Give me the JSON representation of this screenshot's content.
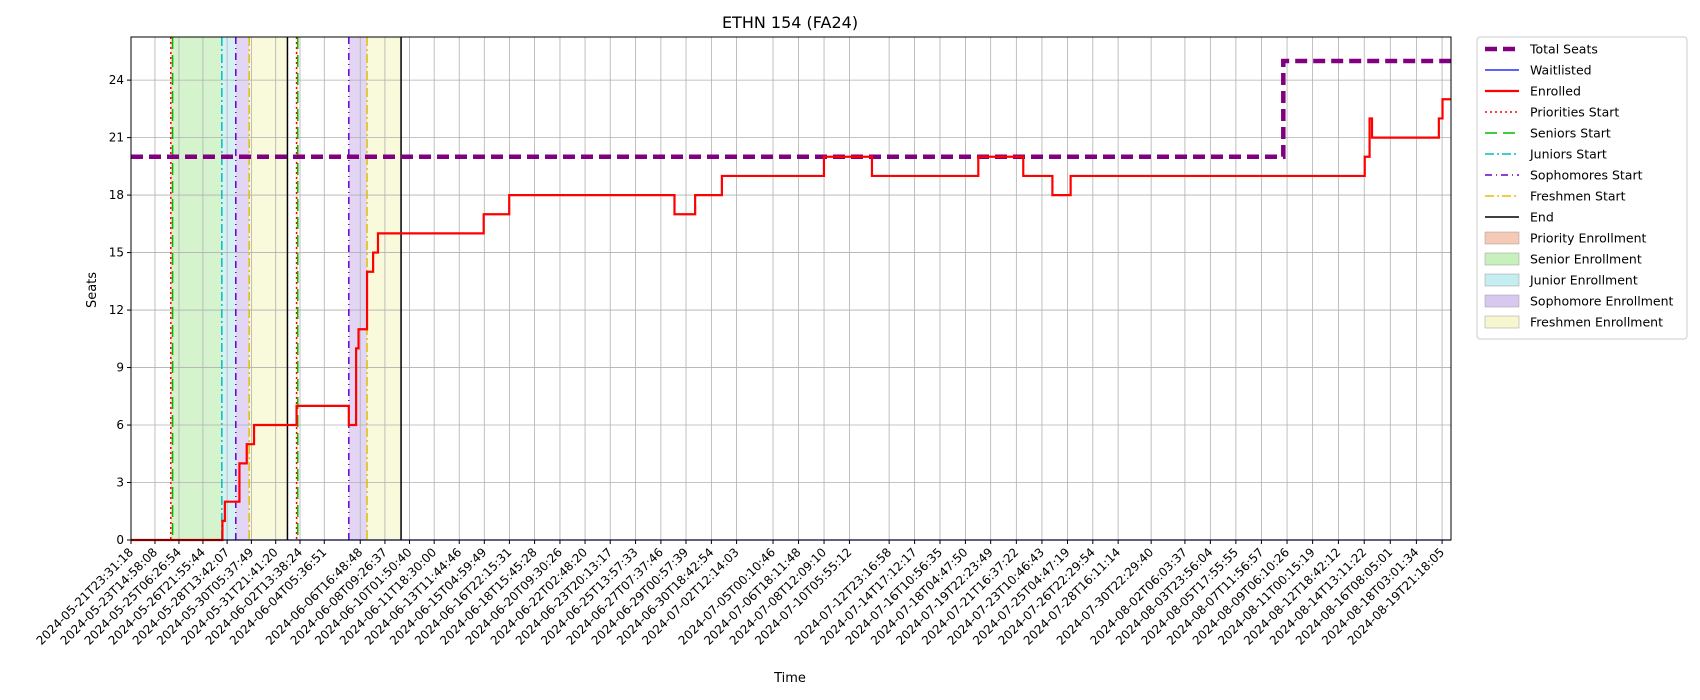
{
  "chart_data": {
    "type": "line",
    "title": "ETHN 154 (FA24)",
    "xlabel": "Time",
    "ylabel": "Seats",
    "ylim": [
      0,
      26.25
    ],
    "y_ticks": [
      0,
      3,
      6,
      9,
      12,
      15,
      18,
      21,
      24
    ],
    "x_range": [
      "2024-05-21T23:31:18",
      "2024-08-20T12:00:00"
    ],
    "x_ticks": [
      "2024-05-21T23:31:18",
      "2024-05-23T14:58:08",
      "2024-05-25T06:26:54",
      "2024-05-26T21:55:44",
      "2024-05-28T13:42:07",
      "2024-05-30T05:37:49",
      "2024-05-31T21:41:20",
      "2024-06-02T13:38:24",
      "2024-06-04T05:36:51",
      "2024-06-06T16:48:48",
      "2024-06-08T09:26:37",
      "2024-06-10T01:50:40",
      "2024-06-11T18:30:00",
      "2024-06-13T11:44:46",
      "2024-06-15T04:59:49",
      "2024-06-16T22:15:31",
      "2024-06-18T15:45:28",
      "2024-06-20T09:30:26",
      "2024-06-22T02:48:20",
      "2024-06-23T20:13:17",
      "2024-06-25T13:57:33",
      "2024-06-27T07:37:46",
      "2024-06-29T00:57:39",
      "2024-06-30T18:42:54",
      "2024-07-02T12:14:03",
      "2024-07-05T00:10:46",
      "2024-07-06T18:11:48",
      "2024-07-08T12:09:10",
      "2024-07-10T05:55:12",
      "2024-07-12T23:16:58",
      "2024-07-14T17:12:17",
      "2024-07-16T10:56:35",
      "2024-07-18T04:47:50",
      "2024-07-19T22:23:49",
      "2024-07-21T16:37:22",
      "2024-07-23T10:46:43",
      "2024-07-25T04:47:19",
      "2024-07-26T22:29:54",
      "2024-07-28T16:11:14",
      "2024-07-30T22:29:40",
      "2024-08-02T06:03:37",
      "2024-08-03T23:56:04",
      "2024-08-05T17:55:55",
      "2024-08-07T11:56:57",
      "2024-08-09T06:10:26",
      "2024-08-11T00:15:19",
      "2024-08-12T18:42:12",
      "2024-08-14T13:11:22",
      "2024-08-16T08:05:01",
      "2024-08-18T03:01:34",
      "2024-08-19T21:18:05"
    ],
    "grid": true,
    "legend_position": "outside-right",
    "series": [
      {
        "name": "Total Seats",
        "style": "dashed",
        "color": "#800080",
        "points": [
          [
            "2024-05-21T23:31:18",
            20
          ],
          [
            "2024-08-09T00:00:00",
            20
          ],
          [
            "2024-08-09T00:00:00",
            25
          ],
          [
            "2024-08-20T12:00:00",
            25
          ]
        ]
      },
      {
        "name": "Waitlisted",
        "style": "solid",
        "color": "#0000ff",
        "points": [
          [
            "2024-05-21T23:31:18",
            0
          ],
          [
            "2024-08-20T12:00:00",
            0
          ]
        ]
      },
      {
        "name": "Enrolled",
        "style": "solid",
        "color": "#ff0000",
        "points": [
          [
            "2024-05-21T23:31:18",
            0
          ],
          [
            "2024-05-28T06:00:00",
            0
          ],
          [
            "2024-05-28T06:00:00",
            1
          ],
          [
            "2024-05-28T10:00:00",
            1
          ],
          [
            "2024-05-28T10:00:00",
            2
          ],
          [
            "2024-05-29T10:00:00",
            2
          ],
          [
            "2024-05-29T10:00:00",
            4
          ],
          [
            "2024-05-29T22:00:00",
            4
          ],
          [
            "2024-05-29T22:00:00",
            5
          ],
          [
            "2024-05-30T10:00:00",
            5
          ],
          [
            "2024-05-30T10:00:00",
            6
          ],
          [
            "2024-06-02T08:00:00",
            6
          ],
          [
            "2024-06-02T08:00:00",
            7
          ],
          [
            "2024-06-05T22:00:00",
            7
          ],
          [
            "2024-06-05T22:00:00",
            6
          ],
          [
            "2024-06-06T10:00:00",
            6
          ],
          [
            "2024-06-06T10:00:00",
            10
          ],
          [
            "2024-06-06T14:00:00",
            10
          ],
          [
            "2024-06-06T14:00:00",
            11
          ],
          [
            "2024-06-07T04:00:00",
            11
          ],
          [
            "2024-06-07T04:00:00",
            14
          ],
          [
            "2024-06-07T14:00:00",
            14
          ],
          [
            "2024-06-07T14:00:00",
            15
          ],
          [
            "2024-06-07T22:00:00",
            15
          ],
          [
            "2024-06-07T22:00:00",
            16
          ],
          [
            "2024-06-15T04:00:00",
            16
          ],
          [
            "2024-06-15T04:00:00",
            17
          ],
          [
            "2024-06-16T22:00:00",
            17
          ],
          [
            "2024-06-16T22:00:00",
            18
          ],
          [
            "2024-06-28T06:00:00",
            18
          ],
          [
            "2024-06-28T06:00:00",
            17
          ],
          [
            "2024-06-29T16:00:00",
            17
          ],
          [
            "2024-06-29T16:00:00",
            18
          ],
          [
            "2024-07-01T12:00:00",
            18
          ],
          [
            "2024-07-01T12:00:00",
            19
          ],
          [
            "2024-07-08T12:00:00",
            19
          ],
          [
            "2024-07-08T12:00:00",
            20
          ],
          [
            "2024-07-11T19:00:00",
            20
          ],
          [
            "2024-07-11T19:00:00",
            19
          ],
          [
            "2024-07-19T02:00:00",
            19
          ],
          [
            "2024-07-19T02:00:00",
            20
          ],
          [
            "2024-07-22T04:00:00",
            20
          ],
          [
            "2024-07-22T04:00:00",
            19
          ],
          [
            "2024-07-24T04:00:00",
            19
          ],
          [
            "2024-07-24T04:00:00",
            18
          ],
          [
            "2024-07-25T10:00:00",
            18
          ],
          [
            "2024-07-25T10:00:00",
            19
          ],
          [
            "2024-08-14T14:00:00",
            19
          ],
          [
            "2024-08-14T14:00:00",
            20
          ],
          [
            "2024-08-14T22:00:00",
            20
          ],
          [
            "2024-08-14T22:00:00",
            22
          ],
          [
            "2024-08-15T02:00:00",
            22
          ],
          [
            "2024-08-15T02:00:00",
            21
          ],
          [
            "2024-08-19T16:00:00",
            21
          ],
          [
            "2024-08-19T16:00:00",
            22
          ],
          [
            "2024-08-19T22:00:00",
            22
          ],
          [
            "2024-08-19T22:00:00",
            23
          ],
          [
            "2024-08-20T12:00:00",
            23
          ]
        ]
      }
    ],
    "vlines": [
      {
        "name": "Priorities Start",
        "style": "dotted",
        "color": "#ff0000",
        "at": [
          "2024-05-24T17:00:00",
          "2024-06-02T08:00:00"
        ]
      },
      {
        "name": "Seniors Start",
        "style": "dashed",
        "color": "#00bb00",
        "at": [
          "2024-05-24T20:00:00",
          "2024-06-02T10:00:00"
        ]
      },
      {
        "name": "Juniors Start",
        "style": "dashdot",
        "color": "#00bfbf",
        "at": [
          "2024-05-28T05:00:00"
        ]
      },
      {
        "name": "Sophomores Start",
        "style": "dotted-dash",
        "color": "#6600cc",
        "at": [
          "2024-05-29T04:00:00",
          "2024-06-05T22:00:00"
        ]
      },
      {
        "name": "Freshmen Start",
        "style": "dashdot",
        "color": "#e0c000",
        "at": [
          "2024-05-30T02:00:00",
          "2024-06-07T04:00:00"
        ]
      },
      {
        "name": "End",
        "style": "solid",
        "color": "#000000",
        "at": [
          "2024-06-01T17:00:00",
          "2024-06-09T12:00:00"
        ]
      }
    ],
    "spans": [
      {
        "name": "Priority Enrollment",
        "color": "#f4c9b5",
        "ranges": [
          [
            "2024-05-24T17:00:00",
            "2024-05-24T20:00:00"
          ],
          [
            "2024-06-02T08:00:00",
            "2024-06-02T10:00:00"
          ]
        ]
      },
      {
        "name": "Senior Enrollment",
        "color": "#c7f0bd",
        "ranges": [
          [
            "2024-05-24T20:00:00",
            "2024-05-28T05:00:00"
          ]
        ]
      },
      {
        "name": "Junior Enrollment",
        "color": "#c5eef0",
        "ranges": [
          [
            "2024-05-28T05:00:00",
            "2024-05-29T04:00:00"
          ]
        ]
      },
      {
        "name": "Sophomore Enrollment",
        "color": "#d8c8f0",
        "ranges": [
          [
            "2024-05-29T04:00:00",
            "2024-05-30T02:00:00"
          ],
          [
            "2024-06-05T22:00:00",
            "2024-06-07T04:00:00"
          ]
        ]
      },
      {
        "name": "Freshmen Enrollment",
        "color": "#f7f7cf",
        "ranges": [
          [
            "2024-05-30T02:00:00",
            "2024-06-01T17:00:00"
          ],
          [
            "2024-06-07T04:00:00",
            "2024-06-09T12:00:00"
          ]
        ]
      }
    ]
  }
}
